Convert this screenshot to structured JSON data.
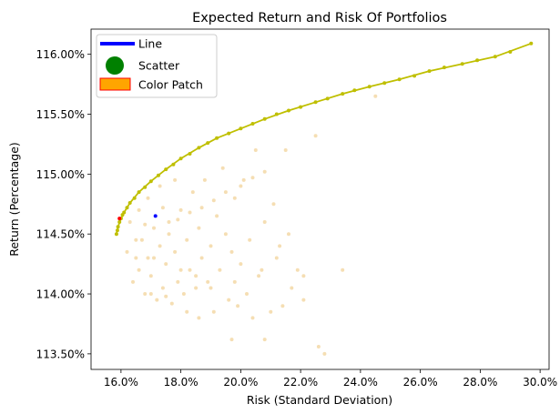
{
  "chart_data": {
    "type": "scatter",
    "title": "Expected Return and Risk Of Portfolios",
    "xlabel": "Risk (Standard Deviation)",
    "ylabel": "Return (Percentage)",
    "xlim": [
      15.0,
      30.3
    ],
    "ylim": [
      113.37,
      116.21
    ],
    "x_ticks": [
      {
        "value": 16,
        "label": "16.0%"
      },
      {
        "value": 18,
        "label": "18.0%"
      },
      {
        "value": 20,
        "label": "20.0%"
      },
      {
        "value": 22,
        "label": "22.0%"
      },
      {
        "value": 24,
        "label": "24.0%"
      },
      {
        "value": 26,
        "label": "26.0%"
      },
      {
        "value": 28,
        "label": "28.0%"
      },
      {
        "value": 30,
        "label": "30.0%"
      }
    ],
    "y_ticks": [
      {
        "value": 113.5,
        "label": "113.50%"
      },
      {
        "value": 114.0,
        "label": "114.00%"
      },
      {
        "value": 114.5,
        "label": "114.50%"
      },
      {
        "value": 115.0,
        "label": "115.00%"
      },
      {
        "value": 115.5,
        "label": "115.50%"
      },
      {
        "value": 116.0,
        "label": "116.00%"
      }
    ],
    "grid": false,
    "legend_position": "top-left",
    "legend": [
      {
        "label": "Line",
        "kind": "line",
        "color": "#0000ff"
      },
      {
        "label": "Scatter",
        "kind": "marker",
        "color": "#008000"
      },
      {
        "label": "Color Patch",
        "kind": "patch",
        "color": "#ffa500",
        "edge_color": "#ff0000"
      }
    ],
    "series": [
      {
        "kind": "scatter",
        "color": "#f5deb3",
        "points": [
          [
            16.2,
            114.35
          ],
          [
            16.4,
            114.1
          ],
          [
            16.5,
            114.3
          ],
          [
            16.6,
            114.2
          ],
          [
            16.7,
            114.45
          ],
          [
            16.8,
            114.0
          ],
          [
            16.9,
            114.3
          ],
          [
            17.0,
            114.15
          ],
          [
            17.1,
            114.55
          ],
          [
            17.2,
            113.95
          ],
          [
            17.3,
            114.4
          ],
          [
            17.4,
            114.05
          ],
          [
            17.5,
            114.25
          ],
          [
            17.6,
            114.6
          ],
          [
            17.7,
            113.92
          ],
          [
            17.8,
            114.35
          ],
          [
            17.9,
            114.1
          ],
          [
            18.0,
            114.7
          ],
          [
            18.1,
            114.0
          ],
          [
            18.2,
            114.45
          ],
          [
            18.3,
            114.2
          ],
          [
            18.4,
            114.85
          ],
          [
            18.5,
            114.05
          ],
          [
            18.6,
            114.55
          ],
          [
            18.7,
            114.3
          ],
          [
            18.8,
            114.95
          ],
          [
            18.9,
            114.1
          ],
          [
            19.0,
            114.4
          ],
          [
            19.1,
            113.85
          ],
          [
            19.2,
            114.65
          ],
          [
            19.3,
            114.2
          ],
          [
            19.4,
            115.05
          ],
          [
            19.5,
            114.5
          ],
          [
            19.6,
            113.95
          ],
          [
            19.7,
            114.35
          ],
          [
            19.8,
            114.8
          ],
          [
            19.9,
            113.9
          ],
          [
            20.0,
            114.25
          ],
          [
            20.1,
            114.95
          ],
          [
            20.3,
            114.45
          ],
          [
            20.4,
            113.8
          ],
          [
            20.5,
            115.2
          ],
          [
            20.6,
            114.15
          ],
          [
            20.8,
            114.6
          ],
          [
            21.0,
            113.85
          ],
          [
            21.1,
            114.75
          ],
          [
            21.2,
            114.3
          ],
          [
            21.4,
            113.9
          ],
          [
            21.6,
            114.5
          ],
          [
            21.7,
            114.05
          ],
          [
            16.3,
            114.6
          ],
          [
            16.6,
            114.7
          ],
          [
            16.9,
            114.8
          ],
          [
            17.3,
            114.9
          ],
          [
            17.8,
            114.95
          ],
          [
            17.0,
            114.0
          ],
          [
            17.5,
            113.98
          ],
          [
            18.2,
            113.85
          ],
          [
            18.6,
            113.8
          ],
          [
            17.6,
            114.5
          ],
          [
            16.5,
            114.45
          ],
          [
            16.8,
            114.58
          ],
          [
            17.1,
            114.3
          ],
          [
            17.4,
            114.72
          ],
          [
            17.9,
            114.62
          ],
          [
            18.3,
            114.68
          ],
          [
            18.7,
            114.72
          ],
          [
            19.1,
            114.78
          ],
          [
            19.5,
            114.85
          ],
          [
            20.0,
            114.9
          ],
          [
            20.4,
            114.97
          ],
          [
            20.8,
            115.02
          ],
          [
            18.0,
            114.2
          ],
          [
            18.5,
            114.15
          ],
          [
            19.0,
            114.05
          ],
          [
            19.8,
            114.1
          ],
          [
            20.2,
            114.0
          ],
          [
            20.7,
            114.2
          ],
          [
            21.3,
            114.4
          ],
          [
            21.9,
            114.2
          ],
          [
            19.7,
            113.62
          ],
          [
            20.8,
            113.62
          ],
          [
            22.1,
            113.95
          ],
          [
            22.1,
            114.15
          ],
          [
            22.6,
            113.56
          ],
          [
            22.8,
            113.5
          ],
          [
            23.4,
            114.2
          ],
          [
            21.5,
            115.2
          ],
          [
            22.5,
            115.32
          ],
          [
            24.5,
            115.65
          ]
        ]
      },
      {
        "kind": "line",
        "color": "#bfbf00",
        "points": [
          [
            15.85,
            114.5
          ],
          [
            15.95,
            114.6
          ],
          [
            16.1,
            114.68
          ],
          [
            16.3,
            114.76
          ],
          [
            16.6,
            114.85
          ],
          [
            17.0,
            114.94
          ],
          [
            17.5,
            115.04
          ],
          [
            18.0,
            115.13
          ],
          [
            18.6,
            115.22
          ],
          [
            19.2,
            115.3
          ],
          [
            20.0,
            115.38
          ],
          [
            20.8,
            115.46
          ],
          [
            21.6,
            115.53
          ],
          [
            22.5,
            115.6
          ],
          [
            23.4,
            115.67
          ],
          [
            24.3,
            115.73
          ],
          [
            25.3,
            115.79
          ],
          [
            26.3,
            115.86
          ],
          [
            27.4,
            115.92
          ],
          [
            28.5,
            115.98
          ],
          [
            29.7,
            116.09
          ]
        ]
      },
      {
        "kind": "scatter",
        "color": "#bfbf00",
        "points": [
          [
            15.85,
            114.5
          ],
          [
            15.88,
            114.53
          ],
          [
            15.9,
            114.56
          ],
          [
            15.95,
            114.6
          ],
          [
            16.0,
            114.63
          ],
          [
            16.05,
            114.66
          ],
          [
            16.1,
            114.68
          ],
          [
            16.2,
            114.72
          ],
          [
            16.3,
            114.76
          ],
          [
            16.45,
            114.8
          ],
          [
            16.6,
            114.85
          ],
          [
            16.8,
            114.89
          ],
          [
            17.0,
            114.94
          ],
          [
            17.25,
            114.99
          ],
          [
            17.5,
            115.04
          ],
          [
            17.75,
            115.08
          ],
          [
            18.0,
            115.13
          ],
          [
            18.3,
            115.17
          ],
          [
            18.6,
            115.22
          ],
          [
            18.9,
            115.26
          ],
          [
            19.2,
            115.3
          ],
          [
            19.6,
            115.34
          ],
          [
            20.0,
            115.38
          ],
          [
            20.4,
            115.42
          ],
          [
            20.8,
            115.46
          ],
          [
            21.2,
            115.5
          ],
          [
            21.6,
            115.53
          ],
          [
            22.0,
            115.56
          ],
          [
            22.5,
            115.6
          ],
          [
            22.9,
            115.63
          ],
          [
            23.4,
            115.67
          ],
          [
            23.8,
            115.7
          ],
          [
            24.3,
            115.73
          ],
          [
            24.8,
            115.76
          ],
          [
            25.3,
            115.79
          ],
          [
            25.8,
            115.82
          ],
          [
            26.3,
            115.86
          ],
          [
            26.8,
            115.89
          ],
          [
            27.4,
            115.92
          ],
          [
            27.9,
            115.95
          ],
          [
            28.5,
            115.98
          ],
          [
            29.0,
            116.02
          ],
          [
            29.7,
            116.09
          ]
        ]
      },
      {
        "kind": "scatter",
        "color": "#ff0000",
        "points": [
          [
            15.95,
            114.63
          ]
        ]
      },
      {
        "kind": "scatter",
        "color": "#0000ff",
        "points": [
          [
            17.15,
            114.65
          ]
        ]
      }
    ]
  }
}
